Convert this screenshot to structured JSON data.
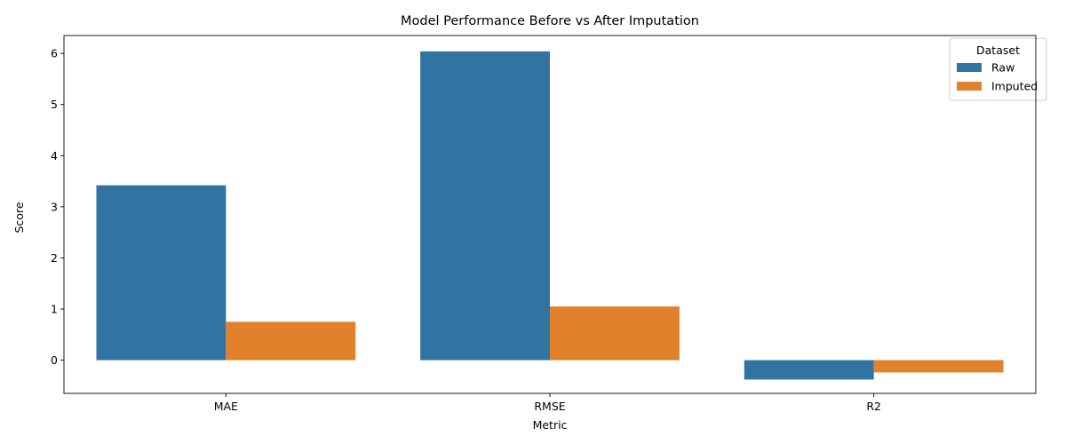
{
  "chart_data": {
    "type": "bar",
    "title": "Model Performance Before vs After Imputation",
    "xlabel": "Metric",
    "ylabel": "Score",
    "categories": [
      "MAE",
      "RMSE",
      "R2"
    ],
    "series": [
      {
        "name": "Raw",
        "values": [
          3.42,
          6.04,
          -0.38
        ],
        "color": "#3274a1"
      },
      {
        "name": "Imputed",
        "values": [
          0.75,
          1.05,
          -0.24
        ],
        "color": "#e1812c"
      }
    ],
    "yticks": [
      0,
      1,
      2,
      3,
      4,
      5,
      6
    ],
    "ylim": [
      -0.65,
      6.35
    ],
    "grid": false,
    "legend": {
      "title": "Dataset",
      "position": "top-right"
    }
  }
}
